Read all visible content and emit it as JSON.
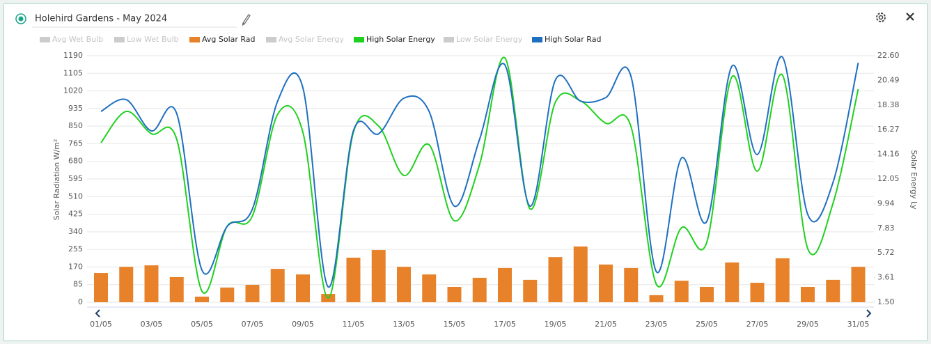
{
  "header": {
    "title": "Holehird Gardens - May 2024"
  },
  "chart_data": {
    "type": "combo",
    "y_label": "Solar Radiation W/m²",
    "y2_label": "Solar Energy Ly",
    "categories": [
      "01/05",
      null,
      "03/05",
      null,
      "05/05",
      null,
      "07/05",
      null,
      "09/05",
      null,
      "11/05",
      null,
      "13/05",
      null,
      "15/05",
      null,
      "17/05",
      null,
      "19/05",
      null,
      "21/05",
      null,
      "23/05",
      null,
      "25/05",
      null,
      "27/05",
      null,
      "29/05",
      null,
      "31/05"
    ],
    "ylim": [
      0,
      1190
    ],
    "yticks": [
      0,
      85,
      170,
      255,
      340,
      425,
      510,
      595,
      680,
      765,
      850,
      935,
      1020,
      1105,
      1190
    ],
    "y2lim": [
      1.5,
      22.6
    ],
    "y2ticks": [
      {
        "value": 1.5,
        "label": "1.50"
      },
      3.61,
      5.72,
      7.83,
      9.94,
      12.05,
      14.16,
      16.27,
      18.38,
      20.49,
      {
        "value": 22.6,
        "label": "22.60"
      }
    ],
    "grid": true,
    "series": [
      {
        "name": "Avg Wet Bulb",
        "visible": false
      },
      {
        "name": "Low Wet Bulb",
        "visible": false
      },
      {
        "name": "Avg Solar Rad",
        "type": "bar",
        "color": "#e8822a",
        "visible": true,
        "values": [
          141,
          171,
          178,
          121,
          27,
          71,
          84,
          161,
          134,
          40,
          215,
          252,
          171,
          134,
          74,
          118,
          165,
          108,
          218,
          269,
          182,
          165,
          34,
          104,
          74,
          192,
          94,
          212,
          74,
          108,
          171
        ]
      },
      {
        "name": "Avg Solar Energy",
        "visible": false
      },
      {
        "name": "High Solar Energy",
        "type": "line",
        "axis": "y2",
        "color": "#1fd11f",
        "visible": true,
        "values": [
          15.15,
          17.83,
          15.92,
          15.45,
          2.45,
          8.0,
          8.89,
          17.59,
          16.04,
          1.86,
          16.04,
          16.58,
          12.35,
          14.97,
          8.47,
          13.3,
          22.42,
          9.49,
          18.61,
          18.73,
          16.82,
          16.52,
          3.05,
          7.88,
          6.63,
          20.81,
          12.71,
          20.93,
          6.09,
          9.96,
          19.74
        ]
      },
      {
        "name": "Low Solar Energy",
        "visible": false
      },
      {
        "name": "High Solar Rad",
        "type": "line",
        "color": "#1f6fc0",
        "visible": true,
        "values": [
          921,
          978,
          827,
          911,
          155,
          366,
          450,
          971,
          1035,
          74,
          827,
          813,
          985,
          921,
          464,
          787,
          1146,
          464,
          1072,
          971,
          988,
          1089,
          148,
          696,
          390,
          1140,
          713,
          1183,
          424,
          578,
          1156
        ]
      }
    ]
  }
}
